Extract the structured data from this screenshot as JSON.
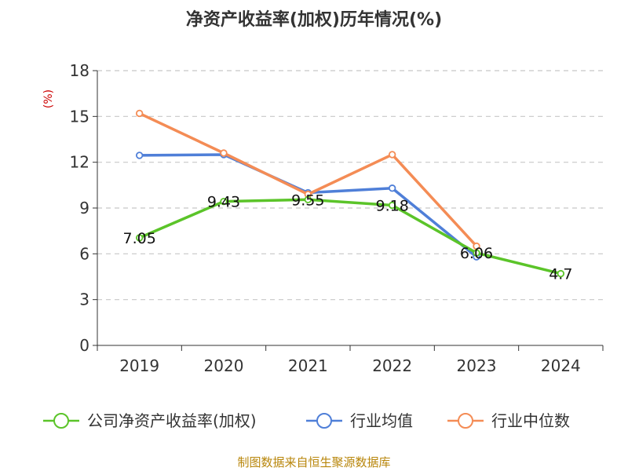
{
  "chart_data": {
    "type": "line",
    "title": "净资产收益率(加权)历年情况(%)",
    "ylabel": "(%)",
    "xlabel": "",
    "categories": [
      "2019",
      "2020",
      "2021",
      "2022",
      "2023",
      "2024"
    ],
    "ylim": [
      0,
      18
    ],
    "yticks": [
      0,
      3,
      6,
      9,
      12,
      15,
      18
    ],
    "grid": true,
    "legend_position": "bottom",
    "series": [
      {
        "name": "公司净资产收益率(加权)",
        "color": "#5bc429",
        "values": [
          7.05,
          9.43,
          9.55,
          9.18,
          6.06,
          4.7
        ],
        "labels": [
          "7.05",
          "9.43",
          "9.55",
          "9.18",
          "6.06",
          "4.7"
        ]
      },
      {
        "name": "行业均值",
        "color": "#4f7fd8",
        "values": [
          12.45,
          12.5,
          10.0,
          10.3,
          5.8,
          null
        ]
      },
      {
        "name": "行业中位数",
        "color": "#f48c55",
        "values": [
          15.2,
          12.6,
          9.9,
          12.5,
          6.5,
          null
        ]
      }
    ]
  },
  "source": "制图数据来自恒生聚源数据库"
}
